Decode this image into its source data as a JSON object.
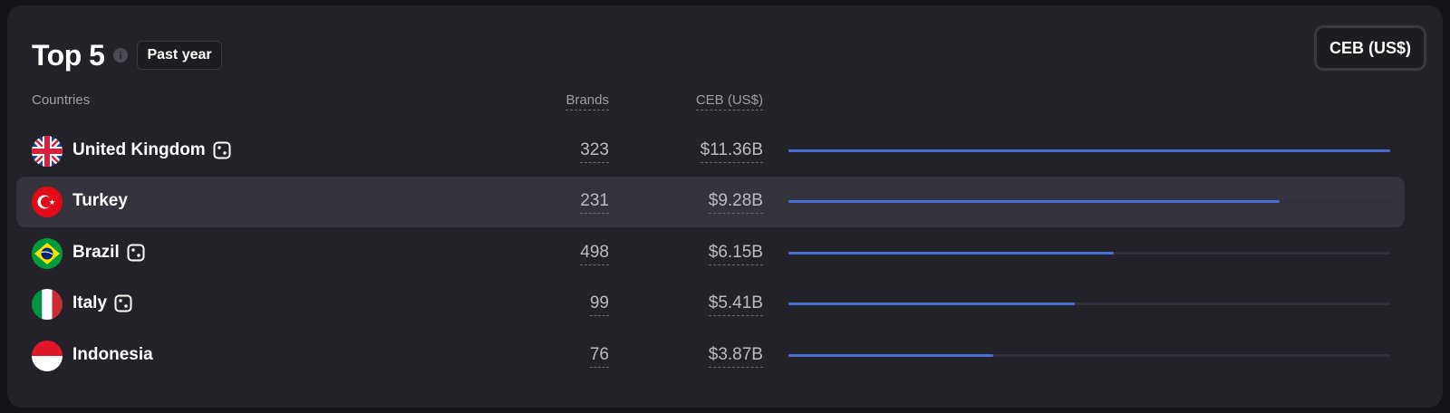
{
  "header": {
    "title": "Top 5",
    "period": "Past year",
    "metric_button": "CEB (US$)"
  },
  "columns": {
    "countries": "Countries",
    "brands": "Brands",
    "ceb": "CEB (US$)"
  },
  "colors": {
    "card_background": "#242229",
    "bar_fill": "#4b6bd5",
    "bar_track": "#30303c",
    "highlight_row": "#35333c"
  },
  "rows": [
    {
      "country": "United Kingdom",
      "flag": "uk-flag-icon",
      "brands": "323",
      "ceb": "$11.36B",
      "ceb_value": 11.36,
      "has_dice": true,
      "highlighted": false
    },
    {
      "country": "Turkey",
      "flag": "turkey-flag-icon",
      "brands": "231",
      "ceb": "$9.28B",
      "ceb_value": 9.28,
      "has_dice": false,
      "highlighted": true
    },
    {
      "country": "Brazil",
      "flag": "brazil-flag-icon",
      "brands": "498",
      "ceb": "$6.15B",
      "ceb_value": 6.15,
      "has_dice": true,
      "highlighted": false
    },
    {
      "country": "Italy",
      "flag": "italy-flag-icon",
      "brands": "99",
      "ceb": "$5.41B",
      "ceb_value": 5.41,
      "has_dice": true,
      "highlighted": false
    },
    {
      "country": "Indonesia",
      "flag": "indonesia-flag-icon",
      "brands": "76",
      "ceb": "$3.87B",
      "ceb_value": 3.87,
      "has_dice": false,
      "highlighted": false
    }
  ]
}
